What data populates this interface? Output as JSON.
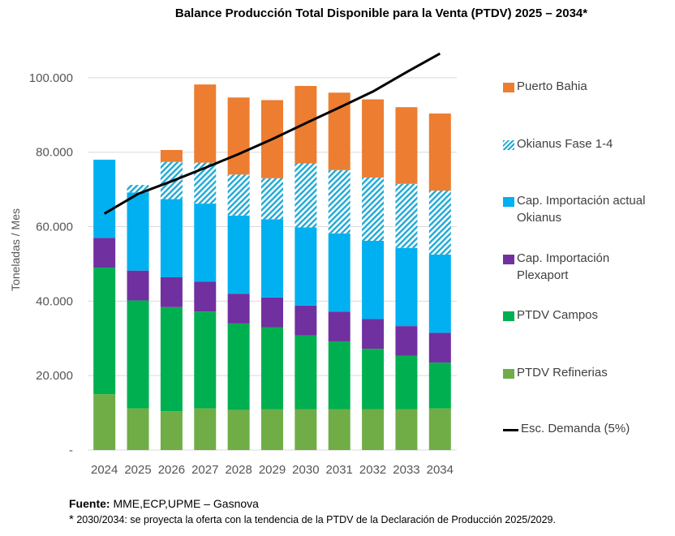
{
  "chart_data": {
    "type": "bar",
    "stacked": true,
    "title": "Balance Producción Total Disponible para la Venta (PTDV) 2025 – 2034*",
    "ylabel": "Toneladas / Mes",
    "xlabel": "",
    "ylim": [
      0,
      110000
    ],
    "yticks": [
      0,
      20000,
      40000,
      60000,
      80000,
      100000
    ],
    "ytick_labels": [
      "-",
      "20.000",
      "40.000",
      "60.000",
      "80.000",
      "100.000"
    ],
    "categories": [
      "2024",
      "2025",
      "2026",
      "2027",
      "2028",
      "2029",
      "2030",
      "2031",
      "2032",
      "2033",
      "2034"
    ],
    "series": [
      {
        "name": "PTDV Refinerias",
        "color": "#70ad47",
        "values": [
          15000,
          11200,
          10400,
          11200,
          10800,
          11000,
          11000,
          11000,
          11000,
          11000,
          11200
        ]
      },
      {
        "name": "PTDV Campos",
        "color": "#00b050",
        "values": [
          34000,
          29000,
          28000,
          26000,
          23200,
          22000,
          19800,
          18200,
          16200,
          14300,
          12300
        ]
      },
      {
        "name": "Cap. Importación Plexaport",
        "color": "#7030a0",
        "values": [
          8000,
          8000,
          8000,
          8000,
          8000,
          8000,
          8000,
          8000,
          8000,
          8000,
          8000
        ]
      },
      {
        "name": "Cap. Importación actual Okianus",
        "color": "#00b0f0",
        "values": [
          21000,
          21000,
          21000,
          21000,
          21000,
          21000,
          21000,
          21000,
          21000,
          21000,
          21000
        ]
      },
      {
        "name": "Okianus Fase 1-4",
        "color": "#1fa9d6",
        "pattern": "hatch",
        "values": [
          0,
          2000,
          10000,
          11000,
          11000,
          11000,
          17200,
          17000,
          17000,
          17200,
          17200
        ]
      },
      {
        "name": "Puerto Bahia",
        "color": "#ed7d31",
        "values": [
          0,
          0,
          3200,
          21000,
          20700,
          21000,
          20800,
          20800,
          21000,
          20600,
          20700
        ]
      }
    ],
    "line_series": [
      {
        "name": "Esc. Demanda (5%)",
        "color": "#000000",
        "x": [
          "2024",
          "2025",
          "2026",
          "2027",
          "2028",
          "2029",
          "2030",
          "2031",
          "2032",
          "2033",
          "2034"
        ],
        "values": [
          63500,
          68800,
          72200,
          75800,
          79500,
          83500,
          87800,
          92000,
          96300,
          101500,
          106500
        ]
      }
    ],
    "legend_order": [
      "Puerto Bahia",
      "Okianus Fase 1-4",
      "Cap. Importación actual Okianus",
      "Cap. Importación Plexaport",
      "PTDV Campos",
      "PTDV Refinerias",
      "Esc. Demanda (5%)"
    ],
    "legend_position": "right",
    "grid": true
  },
  "legend_labels": {
    "puerto_bahia": "Puerto Bahia",
    "okianus_fase": "Okianus Fase 1-4",
    "okianus_actual_1": "Cap. Importación actual",
    "okianus_actual_2": "Okianus",
    "plexaport_1": "Cap. Importación",
    "plexaport_2": "Plexaport",
    "ptdv_campos": "PTDV Campos",
    "ptdv_refinerias": "PTDV Refinerias",
    "demanda": "Esc. Demanda (5%)"
  },
  "footer": {
    "source_label": "Fuente:",
    "source_text": " MME,ECP,UPME – Gasnova",
    "note_star": "*",
    "note_text": " 2030/2034: se proyecta la oferta con la tendencia de la PTDV de la Declaración de Producción 2025/2029."
  }
}
